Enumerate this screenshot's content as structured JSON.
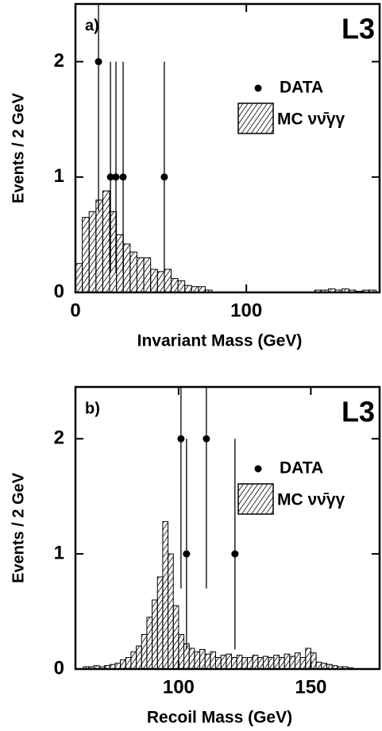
{
  "chart_data": [
    {
      "type": "histogram",
      "label": "a)",
      "logo": "L3",
      "xlabel": "Invariant Mass (GeV)",
      "ylabel": "Events / 2 GeV",
      "xlim": [
        0,
        178
      ],
      "ylim": [
        0,
        2.5
      ],
      "xticks": [
        0,
        100
      ],
      "yticks": [
        0,
        1,
        2
      ],
      "histogram": {
        "name": "MC νν̄γγ",
        "color": "#000000",
        "bins": [
          0,
          4,
          8,
          12,
          16,
          20,
          24,
          28,
          32,
          36,
          40,
          44,
          48,
          52,
          56,
          60,
          64,
          68,
          72,
          76,
          80,
          84,
          88,
          92,
          96,
          100,
          104,
          108,
          112,
          116,
          120,
          124,
          128,
          132,
          136,
          140,
          144,
          148,
          152,
          156,
          160,
          164,
          168,
          172,
          176
        ],
        "counts": [
          0.25,
          0.65,
          0.7,
          0.8,
          0.88,
          0.7,
          0.5,
          0.42,
          0.35,
          0.3,
          0.3,
          0.2,
          0.18,
          0.2,
          0.12,
          0.1,
          0.06,
          0.05,
          0.05,
          0.02,
          0,
          0,
          0,
          0,
          0,
          0,
          0,
          0,
          0,
          0,
          0,
          0,
          0,
          0,
          0,
          0.02,
          0.02,
          0.03,
          0.02,
          0.03,
          0.02,
          0.01,
          0.02,
          0.02
        ]
      },
      "data_points": {
        "name": "DATA",
        "color": "#000000",
        "x": [
          13.5,
          20.5,
          23.7,
          27.9,
          52
        ],
        "values": [
          2,
          1,
          1,
          1,
          1
        ],
        "yerr_low": [
          1.3,
          0.83,
          0.83,
          0.83,
          0.83
        ],
        "yerr_high": [
          1.3,
          1.0,
          1.0,
          1.0,
          1.0
        ]
      }
    },
    {
      "type": "histogram",
      "label": "b)",
      "logo": "L3",
      "xlabel": "Recoil Mass (GeV)",
      "ylabel": "Events / 2 GeV",
      "xlim": [
        61,
        176
      ],
      "ylim": [
        0,
        2.45
      ],
      "xticks": [
        100,
        150
      ],
      "yticks": [
        0,
        1,
        2
      ],
      "histogram": {
        "name": "MC νν̄γγ",
        "color": "#000000",
        "bins": [
          64,
          66,
          68,
          70,
          72,
          74,
          76,
          78,
          80,
          82,
          84,
          86,
          88,
          90,
          92,
          94,
          96,
          98,
          100,
          102,
          104,
          106,
          108,
          110,
          112,
          114,
          116,
          118,
          120,
          122,
          124,
          126,
          128,
          130,
          132,
          134,
          136,
          138,
          140,
          142,
          144,
          146,
          148,
          150,
          152,
          154,
          156,
          158,
          160,
          162,
          164,
          166,
          168,
          170,
          172,
          174,
          176
        ],
        "counts": [
          0.02,
          0.02,
          0.03,
          0.02,
          0.03,
          0.04,
          0.05,
          0.08,
          0.1,
          0.15,
          0.2,
          0.3,
          0.45,
          0.6,
          0.8,
          1.28,
          1.0,
          0.55,
          0.3,
          0.22,
          0.18,
          0.15,
          0.17,
          0.13,
          0.15,
          0.1,
          0.12,
          0.13,
          0.1,
          0.12,
          0.1,
          0.1,
          0.12,
          0.1,
          0.11,
          0.1,
          0.12,
          0.1,
          0.13,
          0.11,
          0.14,
          0.1,
          0.18,
          0.14,
          0.06,
          0.05,
          0.04,
          0.03,
          0.02,
          0.02,
          0.01,
          0,
          0,
          0,
          0,
          0
        ]
      },
      "data_points": {
        "name": "DATA",
        "color": "#000000",
        "x": [
          100.9,
          103,
          110.5,
          121.3
        ],
        "values": [
          2,
          1,
          2,
          1
        ],
        "yerr_low": [
          1.3,
          0.83,
          1.3,
          0.83
        ],
        "yerr_high": [
          1.3,
          1.0,
          1.3,
          1.0
        ]
      }
    }
  ]
}
